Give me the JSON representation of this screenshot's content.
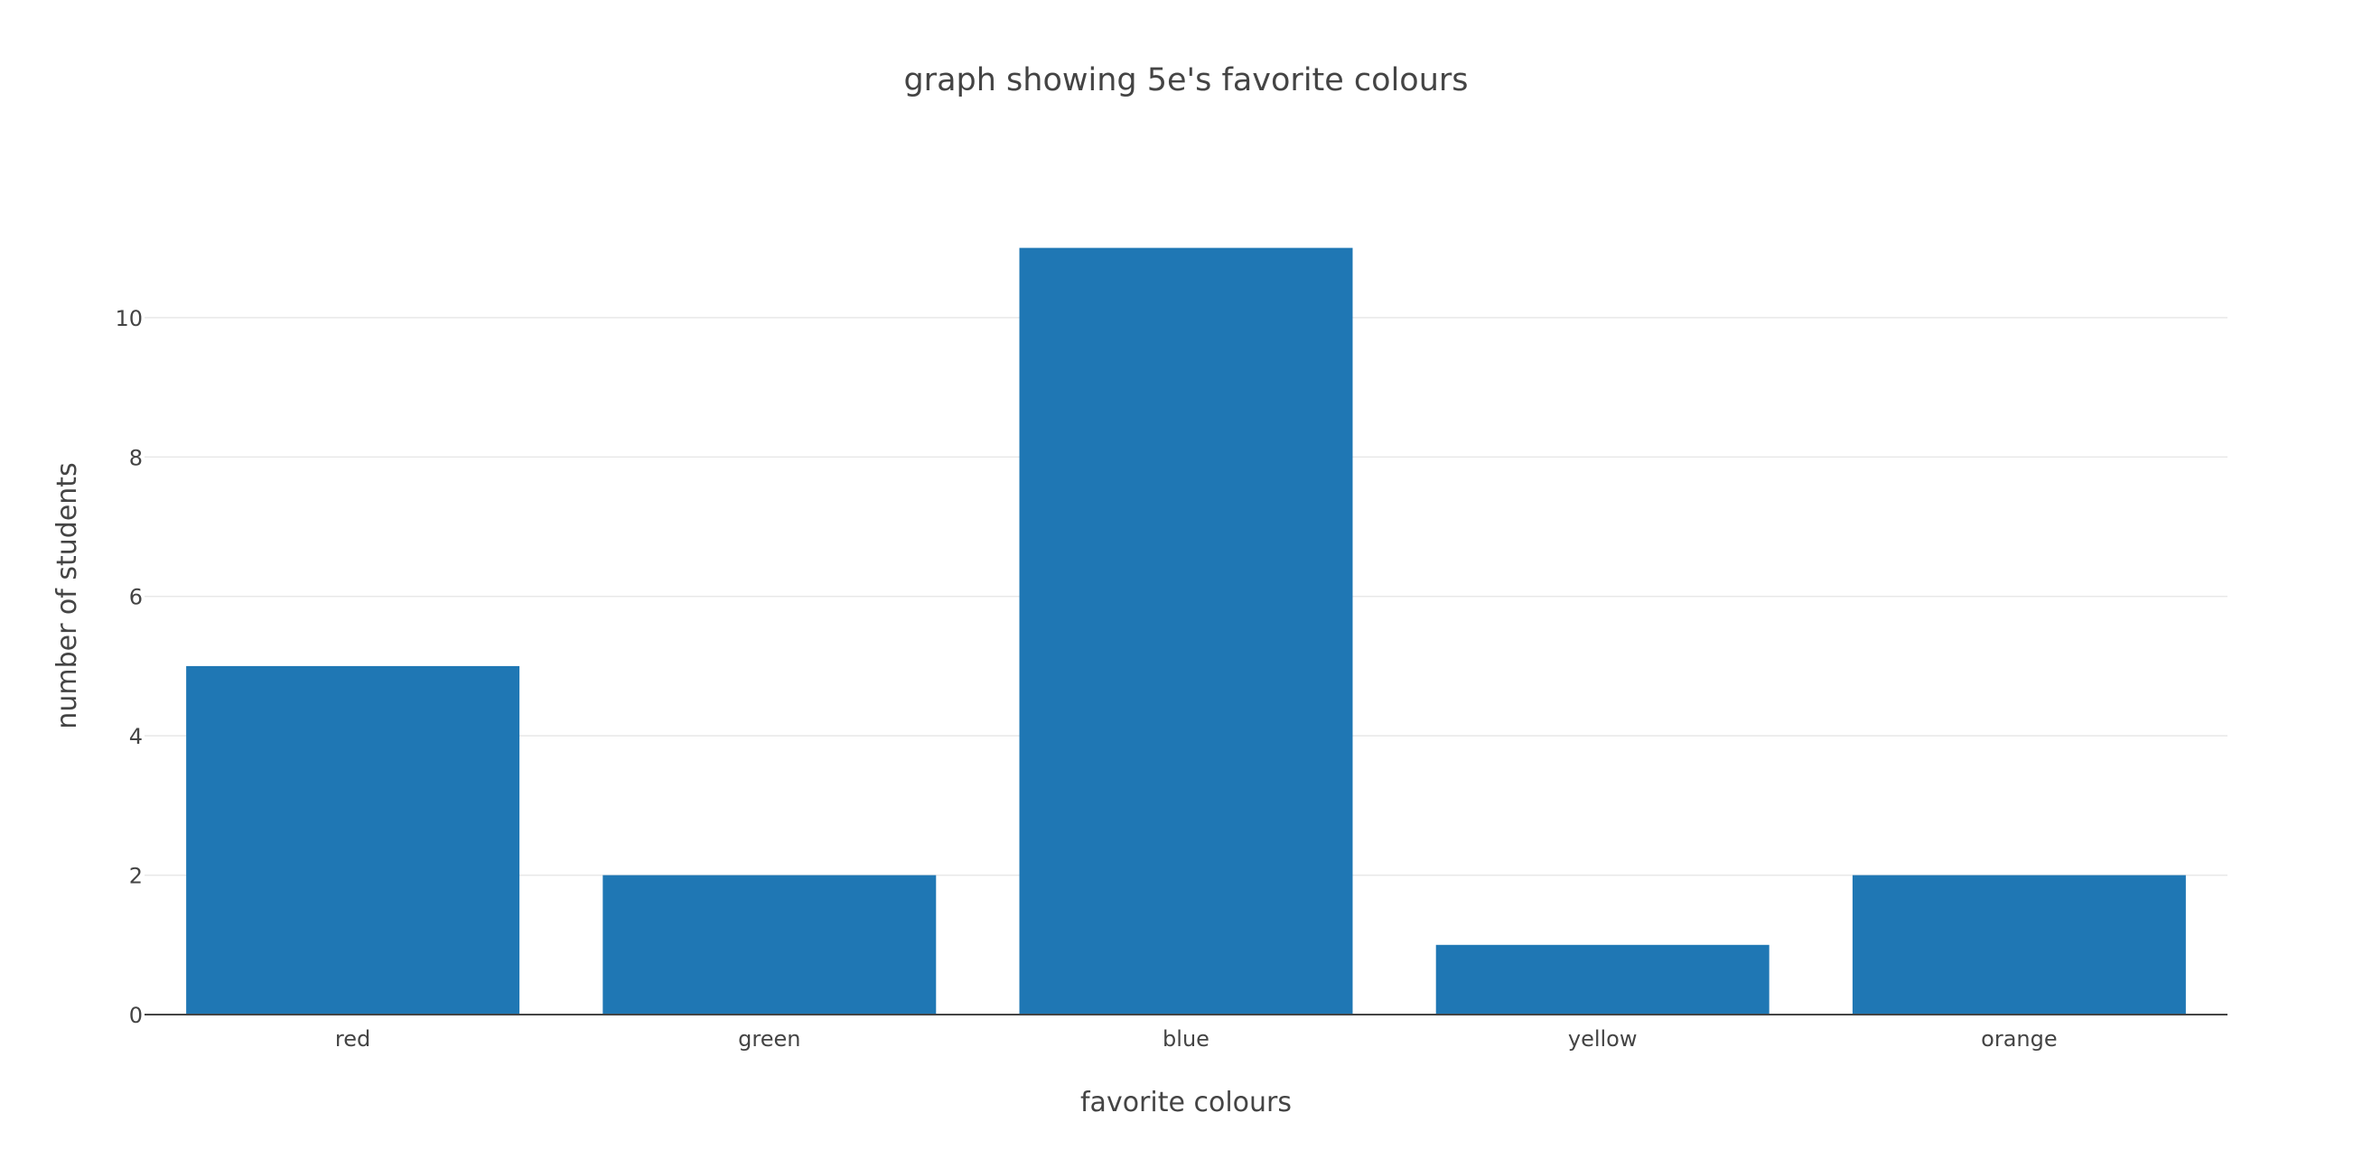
{
  "chart_data": {
    "type": "bar",
    "title": "graph showing 5e's favorite colours",
    "xlabel": "favorite colours",
    "ylabel": "number of students",
    "categories": [
      "red",
      "green",
      "blue",
      "yellow",
      "orange"
    ],
    "values": [
      5,
      2,
      11,
      1,
      2
    ],
    "ylim": [
      0,
      11.5
    ],
    "yticks": [
      0,
      2,
      4,
      6,
      8,
      10
    ],
    "grid": true,
    "bar_color": "#1f77b4"
  }
}
